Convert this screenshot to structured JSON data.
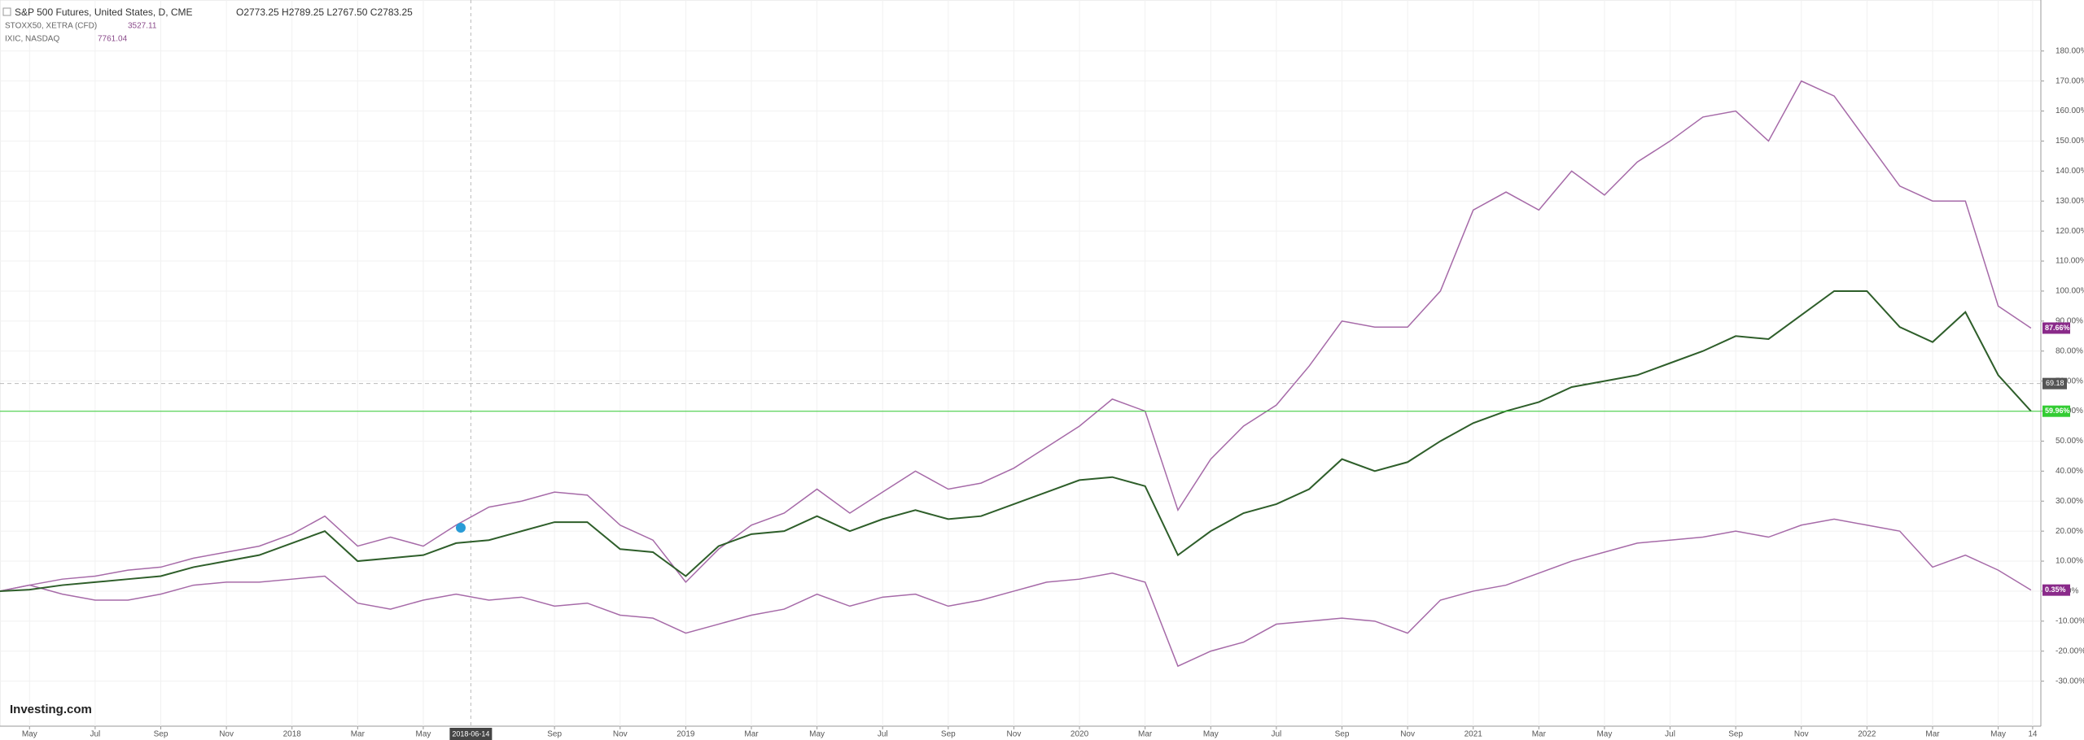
{
  "chart_data": {
    "type": "line",
    "brand": "Investing.com",
    "ohlc": "O2773.25 H2789.25 L2767.50 C2783.25",
    "x": [
      -0.9,
      0,
      1,
      2,
      3,
      4,
      5,
      6,
      7,
      8,
      9,
      10,
      11,
      12,
      13,
      14,
      15,
      16,
      17,
      18,
      19,
      20,
      21,
      22,
      23,
      24,
      25,
      26,
      27,
      28,
      29,
      30,
      31,
      32,
      33,
      34,
      35,
      36,
      37,
      38,
      39,
      40,
      41,
      42,
      43,
      44,
      45,
      46,
      47,
      48,
      49,
      50,
      51,
      52,
      53,
      54,
      55,
      56,
      57,
      58,
      59,
      60,
      61
    ],
    "xlim": [
      -0.9,
      61.3
    ],
    "xticks": [
      {
        "value": 0,
        "label": "May"
      },
      {
        "value": 2,
        "label": "Jul"
      },
      {
        "value": 4,
        "label": "Sep"
      },
      {
        "value": 6,
        "label": "Nov"
      },
      {
        "value": 8,
        "label": "2018"
      },
      {
        "value": 10,
        "label": "Mar"
      },
      {
        "value": 12,
        "label": "May"
      },
      {
        "value": 16,
        "label": "Sep"
      },
      {
        "value": 18,
        "label": "Nov"
      },
      {
        "value": 20,
        "label": "2019"
      },
      {
        "value": 22,
        "label": "Mar"
      },
      {
        "value": 24,
        "label": "May"
      },
      {
        "value": 26,
        "label": "Jul"
      },
      {
        "value": 28,
        "label": "Sep"
      },
      {
        "value": 30,
        "label": "Nov"
      },
      {
        "value": 32,
        "label": "2020"
      },
      {
        "value": 34,
        "label": "Mar"
      },
      {
        "value": 36,
        "label": "May"
      },
      {
        "value": 38,
        "label": "Jul"
      },
      {
        "value": 40,
        "label": "Sep"
      },
      {
        "value": 42,
        "label": "Nov"
      },
      {
        "value": 44,
        "label": "2021"
      },
      {
        "value": 46,
        "label": "Mar"
      },
      {
        "value": 48,
        "label": "May"
      },
      {
        "value": 50,
        "label": "Jul"
      },
      {
        "value": 52,
        "label": "Sep"
      },
      {
        "value": 54,
        "label": "Nov"
      },
      {
        "value": 56,
        "label": "2022"
      },
      {
        "value": 58,
        "label": "Mar"
      },
      {
        "value": 60,
        "label": "May"
      },
      {
        "value": 61.05,
        "label": "14"
      }
    ],
    "crosshair": {
      "value": 13.45,
      "label": "2018-06-14"
    },
    "ylim": [
      -45,
      197
    ],
    "yticks": [
      {
        "value": -30,
        "label": "-30.00%"
      },
      {
        "value": -20,
        "label": "-20.00%"
      },
      {
        "value": -10,
        "label": "-10.00%"
      },
      {
        "value": 0,
        "label": "0.00%"
      },
      {
        "value": 10,
        "label": "10.00%"
      },
      {
        "value": 20,
        "label": "20.00%"
      },
      {
        "value": 30,
        "label": "30.00%"
      },
      {
        "value": 40,
        "label": "40.00%"
      },
      {
        "value": 50,
        "label": "50.00%"
      },
      {
        "value": 60,
        "label": "60.00%"
      },
      {
        "value": 70,
        "label": "70.00%"
      },
      {
        "value": 80,
        "label": "80.00%"
      },
      {
        "value": 90,
        "label": "90.00%"
      },
      {
        "value": 100,
        "label": "100.00%"
      },
      {
        "value": 110,
        "label": "110.00%"
      },
      {
        "value": 120,
        "label": "120.00%"
      },
      {
        "value": 130,
        "label": "130.00%"
      },
      {
        "value": 140,
        "label": "140.00%"
      },
      {
        "value": 150,
        "label": "150.00%"
      },
      {
        "value": 160,
        "label": "160.00%"
      },
      {
        "value": 170,
        "label": "170.00%"
      },
      {
        "value": 180,
        "label": "180.00%"
      }
    ],
    "grid": true,
    "price_line": {
      "value": 69.18,
      "label": "69.18",
      "color": "#555555"
    },
    "series": [
      {
        "name": "IXIC, NASDAQ",
        "quote": "7761.04",
        "color": "#a66aa8",
        "values": [
          0,
          2,
          4,
          5,
          7,
          8,
          11,
          13,
          15,
          19,
          25,
          15,
          18,
          15,
          22,
          28,
          30,
          33,
          32,
          22,
          17,
          3,
          14,
          22,
          26,
          34,
          26,
          33,
          40,
          34,
          36,
          41,
          48,
          55,
          64,
          60,
          27,
          44,
          55,
          62,
          75,
          90,
          88,
          88,
          100,
          127,
          133,
          127,
          140,
          132,
          143,
          150,
          158,
          160,
          150,
          170,
          165,
          150,
          135,
          130,
          130,
          95,
          87.66
        ],
        "last": {
          "value": 87.66,
          "label": "87.66%"
        }
      },
      {
        "name": "STOXX50, XETRA (CFD)",
        "quote": "3527.11",
        "color": "#a66aa8",
        "values": [
          0,
          2,
          -1,
          -3,
          -3,
          -1,
          2,
          3,
          3,
          4,
          5,
          -4,
          -6,
          -3,
          -1,
          -3,
          -2,
          -5,
          -4,
          -8,
          -9,
          -14,
          -11,
          -8,
          -6,
          -1,
          -5,
          -2,
          -1,
          -5,
          -3,
          0,
          3,
          4,
          6,
          3,
          -25,
          -20,
          -17,
          -11,
          -10,
          -9,
          -10,
          -14,
          -3,
          0,
          2,
          6,
          10,
          13,
          16,
          17,
          18,
          20,
          18,
          22,
          24,
          22,
          20,
          8,
          12,
          7,
          0.35
        ],
        "last": {
          "value": 0.35,
          "label": "0.35%"
        }
      },
      {
        "name": "S&P 500 Futures, United States, D, CME",
        "color": "#2e5e2a",
        "values": [
          0,
          0.5,
          2,
          3,
          4,
          5,
          8,
          10,
          12,
          16,
          20,
          10,
          11,
          12,
          16,
          17,
          20,
          23,
          23,
          14,
          13,
          5,
          15,
          19,
          20,
          25,
          20,
          24,
          27,
          24,
          25,
          29,
          33,
          37,
          38,
          35,
          12,
          20,
          26,
          29,
          34,
          44,
          40,
          43,
          50,
          56,
          60,
          63,
          68,
          70,
          72,
          76,
          80,
          85,
          84,
          92,
          100,
          100,
          88,
          83,
          93,
          72,
          59.96
        ],
        "last": {
          "value": 59.96,
          "label": "59.96%",
          "color": "#33cc33"
        }
      }
    ]
  }
}
